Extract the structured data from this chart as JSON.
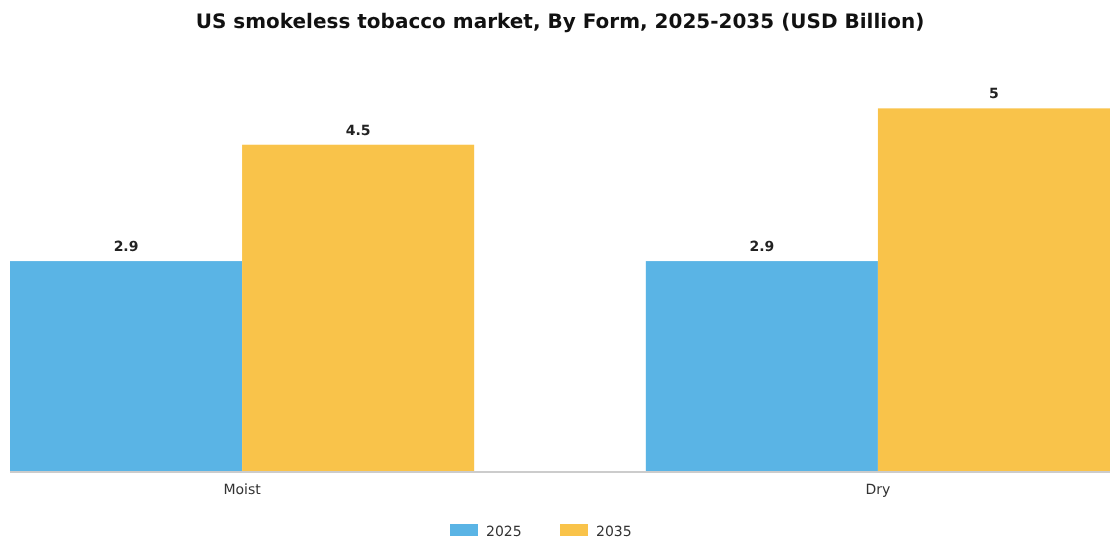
{
  "chart_data": {
    "type": "bar",
    "title": "US smokeless tobacco market, By Form, 2025-2035 (USD Billion)",
    "categories": [
      "Moist",
      "Dry"
    ],
    "series": [
      {
        "name": "2025",
        "color": "#5ab4e5",
        "values": [
          2.9,
          2.9
        ]
      },
      {
        "name": "2035",
        "color": "#f9c34a",
        "values": [
          4.5,
          5
        ]
      }
    ],
    "data_labels": true,
    "legend": "bottom"
  }
}
